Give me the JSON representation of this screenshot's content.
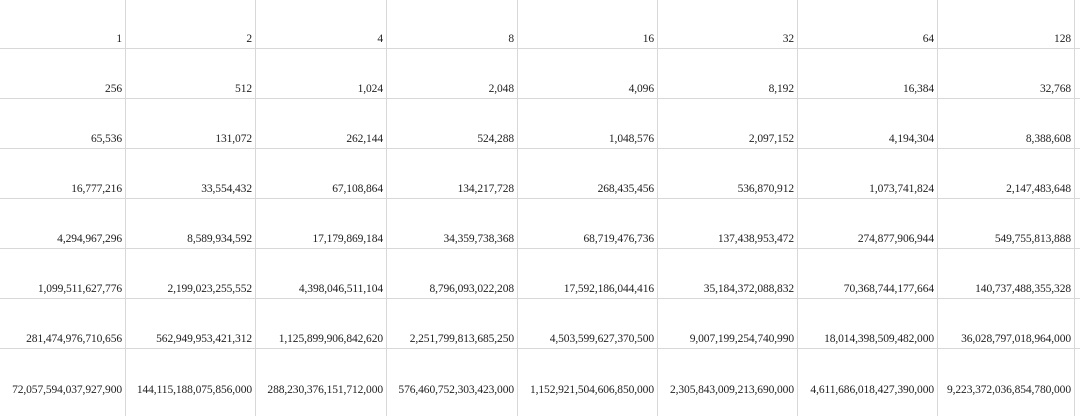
{
  "sheet": {
    "rows": [
      [
        "1",
        "2",
        "4",
        "8",
        "16",
        "32",
        "64",
        "128"
      ],
      [
        "256",
        "512",
        "1,024",
        "2,048",
        "4,096",
        "8,192",
        "16,384",
        "32,768"
      ],
      [
        "65,536",
        "131,072",
        "262,144",
        "524,288",
        "1,048,576",
        "2,097,152",
        "4,194,304",
        "8,388,608"
      ],
      [
        "16,777,216",
        "33,554,432",
        "67,108,864",
        "134,217,728",
        "268,435,456",
        "536,870,912",
        "1,073,741,824",
        "2,147,483,648"
      ],
      [
        "4,294,967,296",
        "8,589,934,592",
        "17,179,869,184",
        "34,359,738,368",
        "68,719,476,736",
        "137,438,953,472",
        "274,877,906,944",
        "549,755,813,888"
      ],
      [
        "1,099,511,627,776",
        "2,199,023,255,552",
        "4,398,046,511,104",
        "8,796,093,022,208",
        "17,592,186,044,416",
        "35,184,372,088,832",
        "70,368,744,177,664",
        "140,737,488,355,328"
      ],
      [
        "281,474,976,710,656",
        "562,949,953,421,312",
        "1,125,899,906,842,620",
        "2,251,799,813,685,250",
        "4,503,599,627,370,500",
        "9,007,199,254,740,990",
        "18,014,398,509,482,000",
        "36,028,797,018,964,000"
      ],
      [
        "72,057,594,037,927,900",
        "144,115,188,075,856,000",
        "288,230,376,151,712,000",
        "576,460,752,303,423,000",
        "1,152,921,504,606,850,000",
        "2,305,843,009,213,690,000",
        "4,611,686,018,427,390,000",
        "9,223,372,036,854,780,000"
      ]
    ]
  }
}
